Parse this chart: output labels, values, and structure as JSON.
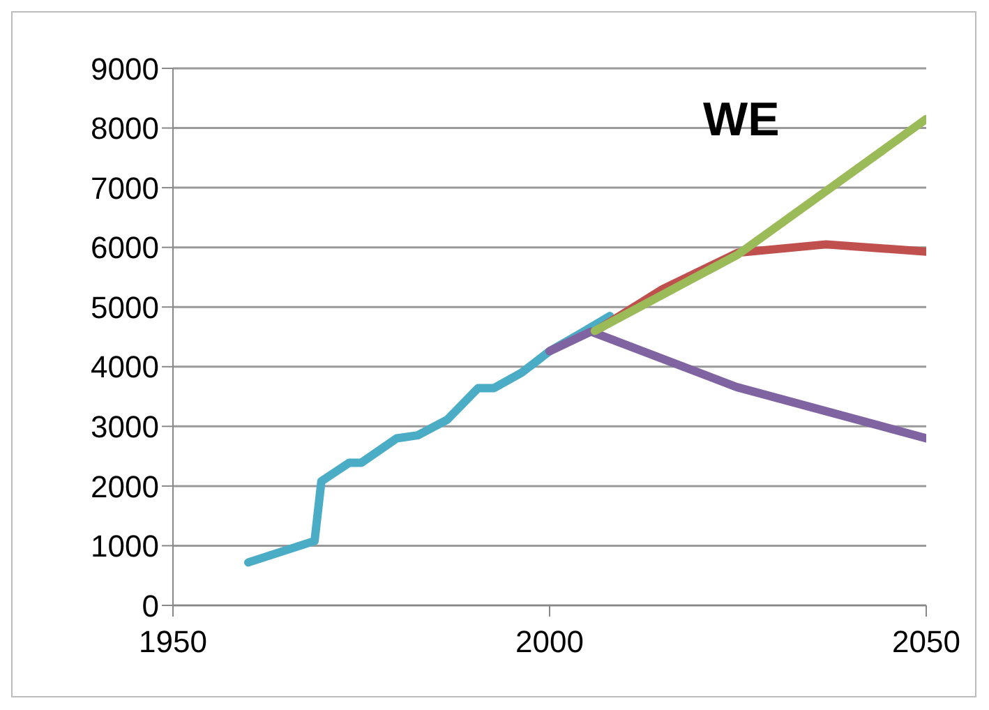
{
  "chart_data": {
    "type": "line",
    "title": "WE",
    "xlim": [
      1950,
      2050
    ],
    "xticks": [
      1950,
      2000,
      2050
    ],
    "ylim": [
      0,
      9000
    ],
    "yticks": [
      0,
      1000,
      2000,
      3000,
      4000,
      5000,
      6000,
      7000,
      8000,
      9000
    ],
    "grid": "y",
    "marker": "none",
    "line_style": "solid",
    "series": [
      {
        "color": "#4bacc6",
        "x": [
          1960,
          1968.8,
          1969.7,
          1973.4,
          1975,
          1979.7,
          1982.5,
          1986.4,
          1990.5,
          1992.6,
          1996.3,
          2000,
          2004,
          2008
        ],
        "values": [
          720,
          1080,
          2080,
          2390,
          2390,
          2800,
          2850,
          3110,
          3640,
          3640,
          3900,
          4260,
          4550,
          4850
        ]
      },
      {
        "color": "#c0504d",
        "x": [
          2006,
          2015,
          2025,
          2036.7,
          2050
        ],
        "values": [
          4590,
          5300,
          5910,
          6050,
          5930
        ]
      },
      {
        "color": "#8064a2",
        "x": [
          2000,
          2005.5,
          2024.8,
          2050
        ],
        "values": [
          4260,
          4590,
          3660,
          2800
        ]
      },
      {
        "color": "#9bbb59",
        "x": [
          2006,
          2025,
          2050
        ],
        "values": [
          4600,
          5880,
          8150
        ]
      }
    ]
  }
}
